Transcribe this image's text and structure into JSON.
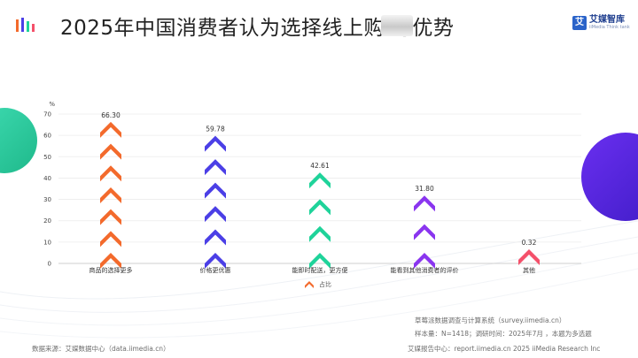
{
  "header": {
    "title": "2025年中国消费者认为选择线上购 与优势",
    "brand_name": "艾媒智库",
    "brand_sub": "iiMedia Think tank",
    "brand_icon": "艾"
  },
  "chart_data": {
    "type": "bar",
    "unit_label": "%",
    "categories": [
      "商品的选择更多",
      "价格更优惠",
      "能即时配送，更方便",
      "能看到其他消费者的评价",
      "其他"
    ],
    "values": [
      66.3,
      59.78,
      42.61,
      31.8,
      0.32
    ],
    "value_labels": [
      "66.30",
      "59.78",
      "42.61",
      "31.80",
      "0.32"
    ],
    "colors": [
      "#f36a2c",
      "#4b3fe6",
      "#1fd39a",
      "#8a35ef",
      "#f4506a"
    ],
    "ylim": [
      0,
      70
    ],
    "yticks": [
      0,
      10,
      20,
      30,
      40,
      50,
      60,
      70
    ],
    "grid": true,
    "legend": {
      "label": "占比",
      "position": "bottom",
      "color": "#f36a2c"
    }
  },
  "footer": {
    "source": "数据来源：艾媒数据中心（data.iimedia.cn）",
    "survey_system": "草莓派数据调查与计算系统（survey.iimedia.cn）",
    "sample": "样本量：N=1418；调研时间：2025年7月 ，本题为多选题",
    "report_center": "艾媒报告中心：report.iimedia.cn   2025 iiMedia Research Inc"
  }
}
